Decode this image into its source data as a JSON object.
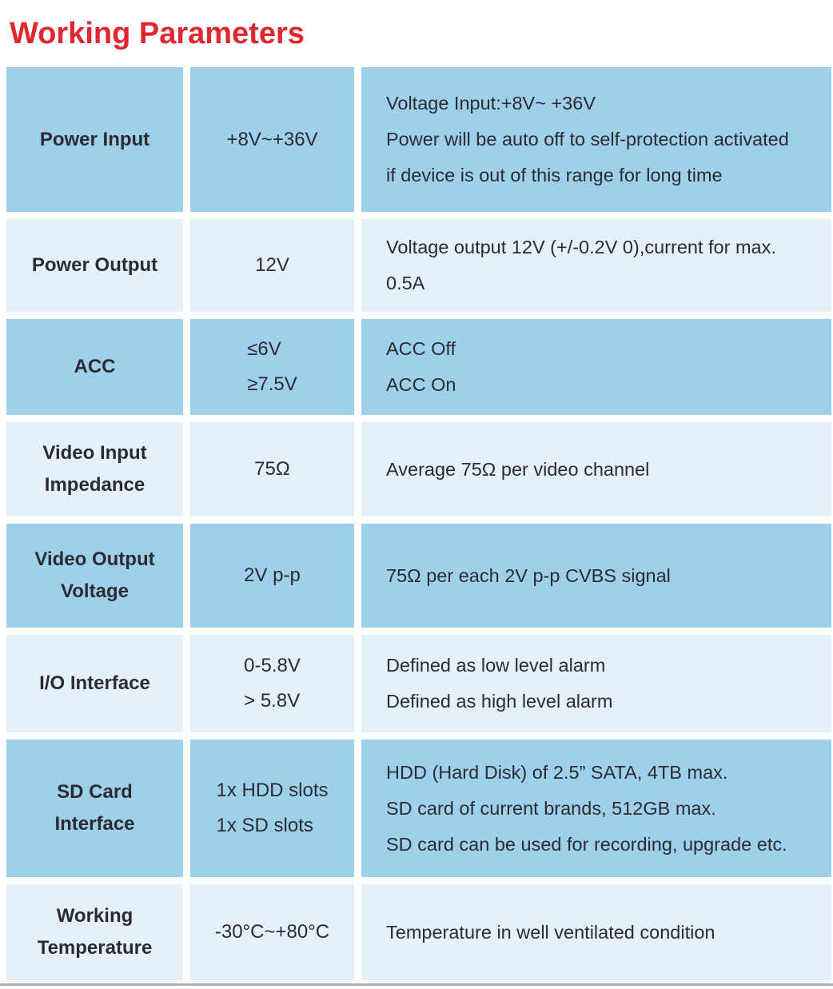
{
  "title": "Working Parameters",
  "colors": {
    "title_red": "#e0262e",
    "row_dark": "#9fd0eb",
    "row_light": "#e4f1fa",
    "text": "#2b2b31"
  },
  "table": {
    "columns": [
      "parameter",
      "value",
      "description"
    ],
    "rows": [
      {
        "shade": "dark",
        "param_lines": [
          "Power Input"
        ],
        "value_lines": [
          "+8V~+36V"
        ],
        "desc_lines": [
          "Voltage Input:+8V~ +36V",
          "Power will be auto off to self-protection activated",
          "if device is out of this range for long time"
        ]
      },
      {
        "shade": "light",
        "param_lines": [
          "Power Output"
        ],
        "value_lines": [
          "12V"
        ],
        "desc_lines": [
          "Voltage output 12V (+/-0.2V 0),current for max.",
          "0.5A"
        ]
      },
      {
        "shade": "dark",
        "param_lines": [
          "ACC"
        ],
        "value_lines": [
          "≤6V",
          "≥7.5V"
        ],
        "desc_lines": [
          "ACC Off",
          "ACC On"
        ]
      },
      {
        "shade": "light",
        "param_lines": [
          "Video Input",
          "Impedance"
        ],
        "value_lines": [
          "75Ω"
        ],
        "desc_lines": [
          "Average 75Ω per video channel"
        ]
      },
      {
        "shade": "dark",
        "param_lines": [
          "Video Output",
          "Voltage"
        ],
        "value_lines": [
          "2V p-p"
        ],
        "desc_lines": [
          "75Ω per each 2V p-p CVBS signal"
        ]
      },
      {
        "shade": "light",
        "param_lines": [
          "I/O Interface"
        ],
        "value_lines": [
          "0-5.8V",
          "> 5.8V"
        ],
        "desc_lines": [
          "Defined as low level alarm",
          "Defined as high level alarm"
        ]
      },
      {
        "shade": "dark",
        "param_lines": [
          "SD Card",
          "Interface"
        ],
        "value_lines": [
          "1x HDD slots",
          "1x SD slots"
        ],
        "desc_lines": [
          "HDD (Hard Disk) of 2.5” SATA, 4TB max.",
          "SD card of current brands, 512GB max.",
          "SD card can be used for recording, upgrade etc."
        ]
      },
      {
        "shade": "light",
        "param_lines": [
          "Working",
          "Temperature"
        ],
        "value_lines": [
          "-30°C~+80°C"
        ],
        "desc_lines": [
          "Temperature in well ventilated condition"
        ]
      }
    ]
  }
}
